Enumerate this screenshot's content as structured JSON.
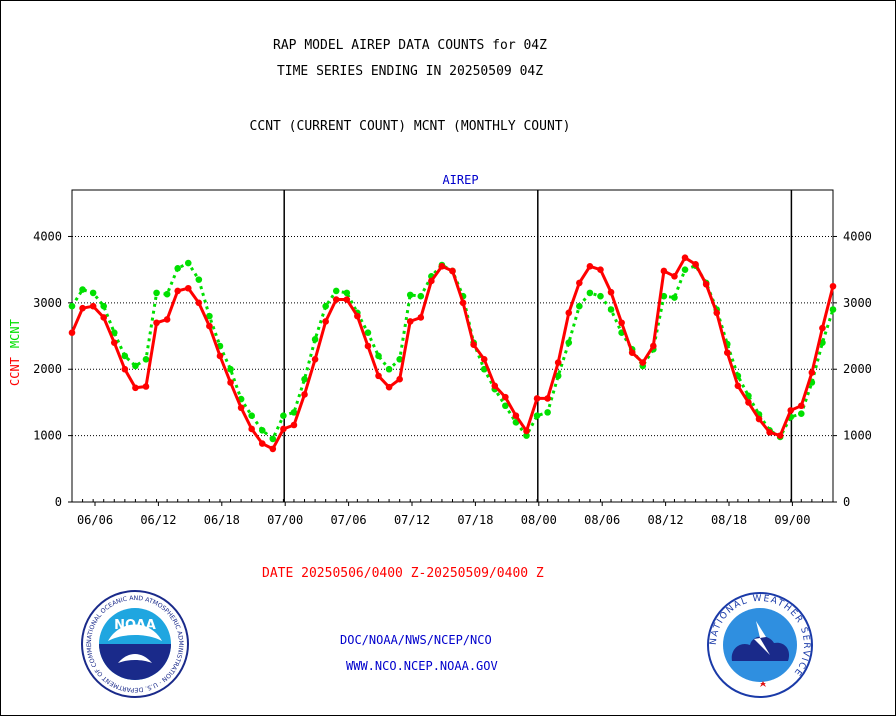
{
  "header": {
    "title_line1": "RAP MODEL AIREP DATA COUNTS for 04Z",
    "title_line2": "TIME SERIES ENDING IN 20250509 04Z",
    "legend_line": "CCNT (CURRENT COUNT) MCNT (MONTHLY COUNT)"
  },
  "chart_data": {
    "type": "line",
    "title": "AIREP",
    "ylabel_parts": [
      "CCNT",
      "MCNT"
    ],
    "ylim": [
      0,
      4700
    ],
    "yticks": [
      0,
      1000,
      2000,
      3000,
      4000
    ],
    "xticks": [
      "06/06",
      "06/12",
      "06/18",
      "07/00",
      "07/06",
      "07/12",
      "07/18",
      "08/00",
      "08/06",
      "08/12",
      "08/18",
      "09/00"
    ],
    "grid": "horizontal dotted",
    "series": [
      {
        "name": "CCNT",
        "color": "#ff0000",
        "values": [
          2550,
          2920,
          2950,
          2780,
          2400,
          2000,
          1720,
          1740,
          2700,
          2750,
          3180,
          3220,
          3000,
          2650,
          2200,
          1800,
          1420,
          1100,
          880,
          800,
          1100,
          1160,
          1620,
          2150,
          2720,
          3050,
          3050,
          2800,
          2350,
          1900,
          1730,
          1850,
          2720,
          2780,
          3330,
          3550,
          3480,
          3000,
          2370,
          2150,
          1750,
          1580,
          1300,
          1070,
          1560,
          1560,
          2100,
          2850,
          3300,
          3550,
          3500,
          3160,
          2700,
          2250,
          2100,
          2350,
          3480,
          3400,
          3680,
          3580,
          3280,
          2850,
          2250,
          1750,
          1500,
          1250,
          1050,
          1000,
          1380,
          1450,
          1950,
          2620,
          3250
        ]
      },
      {
        "name": "MCNT",
        "color": "#00e000",
        "values": [
          2950,
          3200,
          3150,
          2950,
          2550,
          2200,
          2050,
          2150,
          3150,
          3130,
          3520,
          3600,
          3350,
          2800,
          2350,
          2000,
          1550,
          1300,
          1080,
          950,
          1300,
          1350,
          1850,
          2450,
          2950,
          3180,
          3150,
          2850,
          2550,
          2200,
          2000,
          2150,
          3120,
          3100,
          3400,
          3570,
          3480,
          3100,
          2400,
          2000,
          1700,
          1450,
          1200,
          1000,
          1300,
          1350,
          1900,
          2400,
          2950,
          3150,
          3100,
          2900,
          2550,
          2300,
          2050,
          2300,
          3100,
          3080,
          3500,
          3560,
          3300,
          2900,
          2380,
          1900,
          1600,
          1320,
          1080,
          980,
          1280,
          1330,
          1800,
          2400,
          2900
        ]
      }
    ],
    "right_axis": true
  },
  "footer": {
    "date_range": "DATE 20250506/0400 Z-20250509/0400 Z",
    "link1": "DOC/NOAA/NWS/NCEP/NCO",
    "link2": "WWW.NCO.NCEP.NOAA.GOV"
  },
  "logos": {
    "noaa_label": "NOAA",
    "noaa_ring_text": "NATIONAL OCEANIC AND ATMOSPHERIC ADMINISTRATION · U.S. DEPARTMENT OF COMMERCE",
    "nws_ring_text": "NATIONAL WEATHER SERVICE"
  }
}
